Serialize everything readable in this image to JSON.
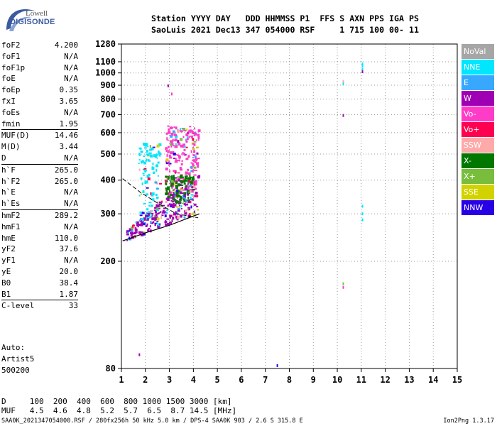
{
  "logo": {
    "line1": "Lowell",
    "line2": "DIGISONDE"
  },
  "header": {
    "row1": "Station YYYY DAY   DDD HHMMSS P1  FFS S AXN PPS IGA PS",
    "row2": "SaoLuis 2021 Dec13 347 054000 RSF     1 715 100 00- 11"
  },
  "params": [
    [
      {
        "k": "foF2",
        "v": "4.200"
      },
      {
        "k": "foF1",
        "v": "N/A"
      },
      {
        "k": "foF1p",
        "v": "N/A"
      },
      {
        "k": "foE",
        "v": "N/A"
      },
      {
        "k": "foEp",
        "v": "0.35"
      },
      {
        "k": "fxI",
        "v": "3.65"
      },
      {
        "k": "foEs",
        "v": "N/A"
      },
      {
        "k": "fmin",
        "v": "1.95"
      }
    ],
    [
      {
        "k": "MUF(D)",
        "v": "14.46"
      },
      {
        "k": "M(D)",
        "v": "3.44"
      },
      {
        "k": "D",
        "v": "N/A"
      }
    ],
    [
      {
        "k": "h`F",
        "v": "265.0"
      },
      {
        "k": "h`F2",
        "v": "265.0"
      },
      {
        "k": "h`E",
        "v": "N/A"
      },
      {
        "k": "h`Es",
        "v": "N/A"
      }
    ],
    [
      {
        "k": "hmF2",
        "v": "289.2"
      },
      {
        "k": "hmF1",
        "v": "N/A"
      },
      {
        "k": "hmE",
        "v": "110.0"
      },
      {
        "k": "yF2",
        "v": "37.6"
      },
      {
        "k": "yF1",
        "v": "N/A"
      },
      {
        "k": "yE",
        "v": "20.0"
      },
      {
        "k": "B0",
        "v": "38.4"
      },
      {
        "k": "B1",
        "v": "1.87"
      }
    ],
    [
      {
        "k": "C-level",
        "v": "33"
      }
    ]
  ],
  "auto": {
    "line1": "Auto:",
    "line2": "Artist5",
    "line3": "500200"
  },
  "legend": [
    {
      "label": "NoVal",
      "color": "#a6a6a6"
    },
    {
      "label": "NNE",
      "color": "#00e6ff"
    },
    {
      "label": "E",
      "color": "#38a8ff"
    },
    {
      "label": "W",
      "color": "#a000b4"
    },
    {
      "label": "Vo-",
      "color": "#ff3cc8"
    },
    {
      "label": "Vo+",
      "color": "#ff0050"
    },
    {
      "label": "SSW",
      "color": "#ffaaaa"
    },
    {
      "label": "X-",
      "color": "#007800"
    },
    {
      "label": "X+",
      "color": "#78be3c"
    },
    {
      "label": "SSE",
      "color": "#d2d200"
    },
    {
      "label": "NNW",
      "color": "#2800e6"
    }
  ],
  "bottom": {
    "d_row": "D     100  200  400  600  800 1000 1500 3000 [km]",
    "muf_row": "MUF   4.5  4.6  4.8  5.2  5.7  6.5  8.7 14.5 [MHz]"
  },
  "footer": {
    "left": "SAA0K_2021347054000.RSF / 280fx256h 50 kHz 5.0 km / DPS-4 SAA0K 903 / 2.6 S 315.8 E",
    "right": "Ion2Png 1.3.17"
  },
  "chart_data": {
    "type": "scatter",
    "xlim": [
      1,
      15
    ],
    "ylim_log": [
      80,
      1280
    ],
    "x_ticks": [
      "1",
      "2",
      "3",
      "4",
      "5",
      "6",
      "7",
      "8",
      "9",
      "10",
      "11",
      "12",
      "13",
      "14",
      "15"
    ],
    "y_ticks": [
      "80",
      "200",
      "300",
      "400",
      "500",
      "600",
      "700",
      "800",
      "900",
      "1000",
      "1100",
      "1280"
    ],
    "grid": true,
    "clusters": [
      {
        "name": "o-trace",
        "color": "#a000b4",
        "x": [
          1.2,
          4.2
        ],
        "y": [
          240,
          330
        ]
      },
      {
        "name": "spread-f",
        "color": "#ff3cc8",
        "x": [
          2.8,
          4.2
        ],
        "y": [
          350,
          640
        ]
      },
      {
        "name": "ne",
        "color": "#00e6ff",
        "x": [
          1.7,
          2.6
        ],
        "y": [
          280,
          560
        ]
      },
      {
        "name": "x",
        "color": "#007800",
        "x": [
          2.8,
          4.0
        ],
        "y": [
          330,
          420
        ]
      }
    ],
    "isolated_points": [
      {
        "x": 11.05,
        "y": 1080,
        "color": "#00e6ff"
      },
      {
        "x": 11.05,
        "y": 1060,
        "color": "#00e6ff"
      },
      {
        "x": 11.05,
        "y": 1030,
        "color": "#00e6ff"
      },
      {
        "x": 11.05,
        "y": 1010,
        "color": "#a000b4"
      },
      {
        "x": 10.25,
        "y": 930,
        "color": "#ffaaaa"
      },
      {
        "x": 10.25,
        "y": 910,
        "color": "#00e6ff"
      },
      {
        "x": 10.25,
        "y": 695,
        "color": "#a000b4"
      },
      {
        "x": 11.05,
        "y": 320,
        "color": "#00e6ff"
      },
      {
        "x": 11.05,
        "y": 300,
        "color": "#00e6ff"
      },
      {
        "x": 11.05,
        "y": 285,
        "color": "#00e6ff"
      },
      {
        "x": 10.25,
        "y": 165,
        "color": "#78be3c"
      },
      {
        "x": 10.25,
        "y": 160,
        "color": "#ff3cc8"
      },
      {
        "x": 7.5,
        "y": 82,
        "color": "#2800e6"
      },
      {
        "x": 2.95,
        "y": 895,
        "color": "#a000b4"
      },
      {
        "x": 3.1,
        "y": 835,
        "color": "#ff3cc8"
      },
      {
        "x": 1.75,
        "y": 90,
        "color": "#a000b4"
      }
    ]
  }
}
